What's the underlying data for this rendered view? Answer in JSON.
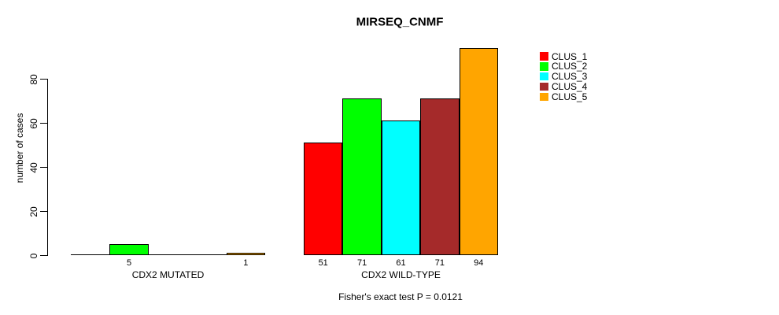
{
  "title": "MIRSEQ_CNMF",
  "y_axis_label": "number of cases",
  "annotation": "Fisher's exact test P = 0.0121",
  "legend": {
    "items": [
      "CLUS_1",
      "CLUS_2",
      "CLUS_3",
      "CLUS_4",
      "CLUS_5"
    ]
  },
  "chart_data": {
    "type": "bar",
    "title": "MIRSEQ_CNMF",
    "xlabel": "",
    "ylabel": "number of cases",
    "categories": [
      "CDX2 MUTATED",
      "CDX2 WILD-TYPE"
    ],
    "series": [
      {
        "name": "CLUS_1",
        "color": "#FF0000",
        "values": [
          0,
          51
        ]
      },
      {
        "name": "CLUS_2",
        "color": "#00FF00",
        "values": [
          5,
          71
        ]
      },
      {
        "name": "CLUS_3",
        "color": "#00FFFF",
        "values": [
          0,
          61
        ]
      },
      {
        "name": "CLUS_4",
        "color": "#A52A2A",
        "values": [
          0,
          71
        ]
      },
      {
        "name": "CLUS_5",
        "color": "#FFA500",
        "values": [
          1,
          94
        ]
      }
    ],
    "bar_labels": [
      [
        "",
        "5",
        "",
        "",
        "1"
      ],
      [
        "51",
        "71",
        "61",
        "71",
        "94"
      ]
    ],
    "yticks": [
      0,
      20,
      40,
      60,
      80
    ],
    "ylim": [
      0,
      97
    ],
    "grid": false,
    "legend_position": "right",
    "bars_beside": true,
    "annotation": "Fisher's exact test P = 0.0121"
  }
}
